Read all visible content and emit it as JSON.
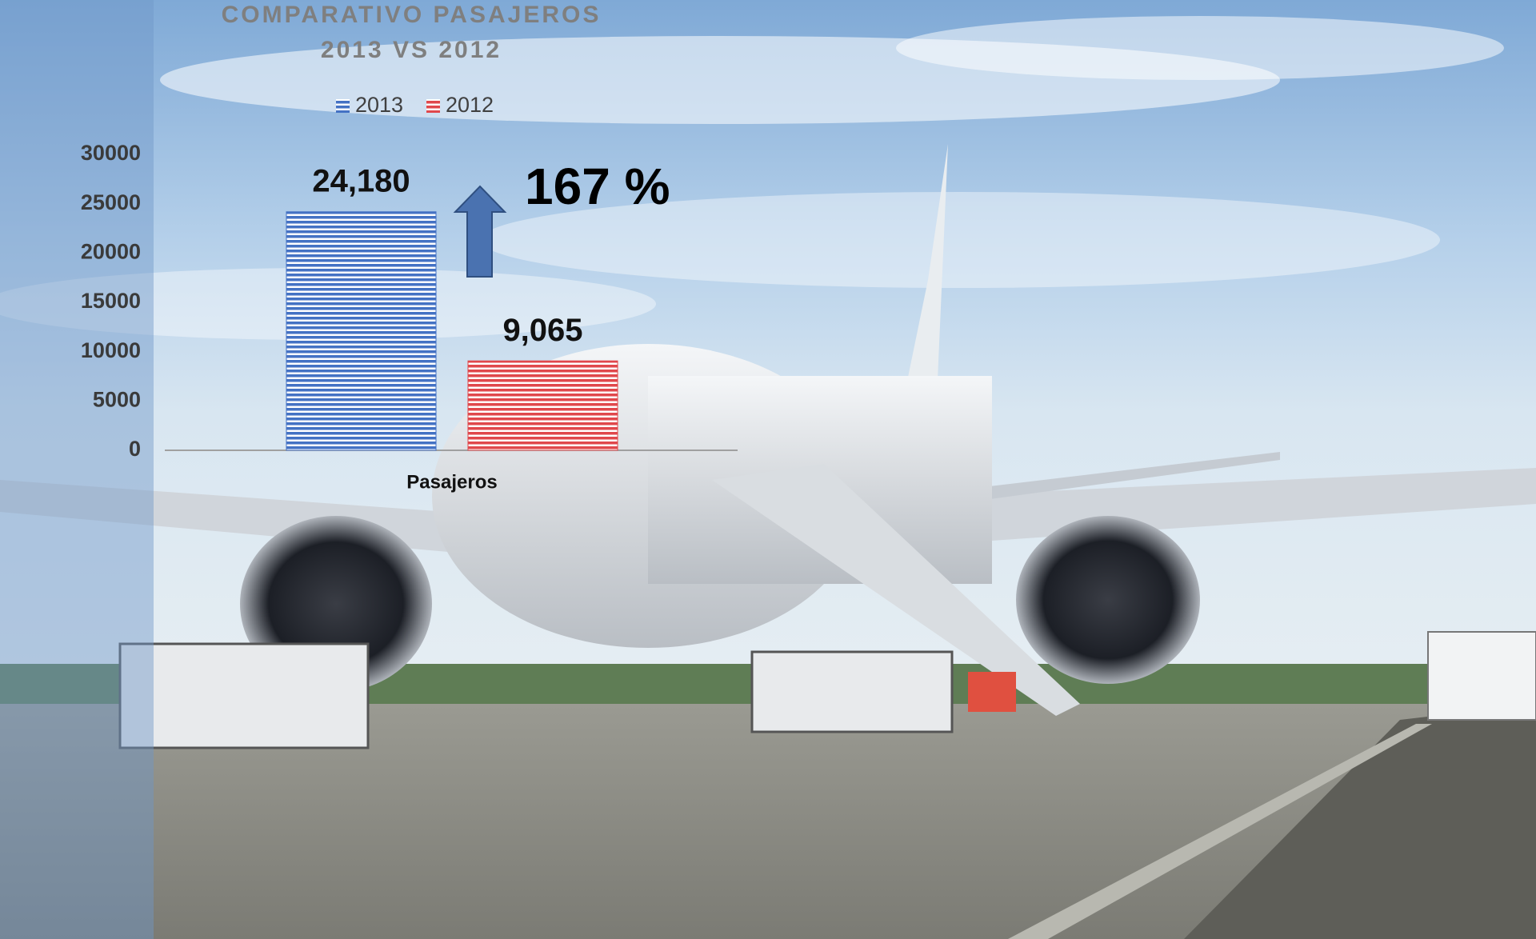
{
  "chart_data": {
    "type": "bar",
    "title": "COMPARATIVO PASAJEROS",
    "subtitle": "2013 VS 2012",
    "categories": [
      "Pasajeros"
    ],
    "series": [
      {
        "name": "2013",
        "color": "#4472c4",
        "values": [
          24180
        ],
        "value_labels": [
          "24,180"
        ]
      },
      {
        "name": "2012",
        "color": "#e0484c",
        "values": [
          9065
        ],
        "value_labels": [
          "9,065"
        ]
      }
    ],
    "annotation": "167 %",
    "ylim": [
      0,
      30000
    ],
    "yticks": [
      0,
      5000,
      10000,
      15000,
      20000,
      25000,
      30000
    ],
    "grid": false,
    "legend": "top"
  }
}
